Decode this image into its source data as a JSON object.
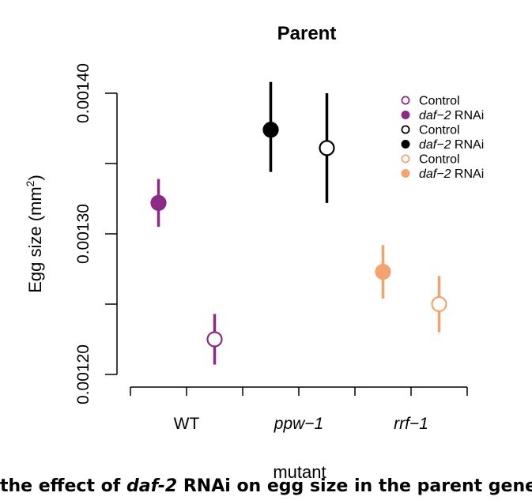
{
  "chart_data": {
    "type": "scatter",
    "title": "Parent",
    "xlabel": "mutant",
    "ylabel": "Egg size (mm",
    "ylabel_superscript": "2",
    "ylabel_close": ")",
    "categories": [
      "WT",
      "ppw-1",
      "rrf-1"
    ],
    "yticks": [
      "0.00120",
      "0.00130",
      "0.00140"
    ],
    "ylim": [
      0.0012,
      0.0014
    ],
    "series": [
      {
        "name": "Control",
        "color": "#8b2b86",
        "filled": false,
        "points": [
          {
            "category": "WT",
            "y": 0.001225,
            "low": 0.001207,
            "high": 0.001243
          }
        ]
      },
      {
        "name": "daf-2 RNAi",
        "color": "#8b2b86",
        "filled": true,
        "points": [
          {
            "category": "WT",
            "y": 0.001322,
            "low": 0.001305,
            "high": 0.001339
          }
        ]
      },
      {
        "name": "Control",
        "color": "#000000",
        "filled": false,
        "points": [
          {
            "category": "ppw-1",
            "y": 0.001361,
            "low": 0.001322,
            "high": 0.0014
          }
        ]
      },
      {
        "name": "daf-2 RNAi",
        "color": "#000000",
        "filled": true,
        "points": [
          {
            "category": "ppw-1",
            "y": 0.001374,
            "low": 0.001344,
            "high": 0.001408
          }
        ]
      },
      {
        "name": "Control",
        "color": "#f4a36f",
        "filled": false,
        "points": [
          {
            "category": "rrf-1",
            "y": 0.00125,
            "low": 0.00123,
            "high": 0.00127
          }
        ]
      },
      {
        "name": "daf-2 RNAi",
        "color": "#f4a36f",
        "filled": true,
        "points": [
          {
            "category": "rrf-1",
            "y": 0.001273,
            "low": 0.001254,
            "high": 0.001292
          }
        ]
      }
    ],
    "legend": {
      "position": "top-right",
      "entries": [
        {
          "prefix": "Control",
          "suffix": ""
        },
        {
          "prefix": "daf−2",
          "suffix": " RNAi"
        },
        {
          "prefix": "Control",
          "suffix": ""
        },
        {
          "prefix": "daf−2",
          "suffix": " RNAi"
        },
        {
          "prefix": "Control",
          "suffix": ""
        },
        {
          "prefix": "daf−2",
          "suffix": " RNAi"
        }
      ]
    },
    "grid": false
  },
  "caption": {
    "bold": "the effect of ",
    "italic": "daf-2",
    "rest": " RNAi on egg size in the parent generation for"
  }
}
